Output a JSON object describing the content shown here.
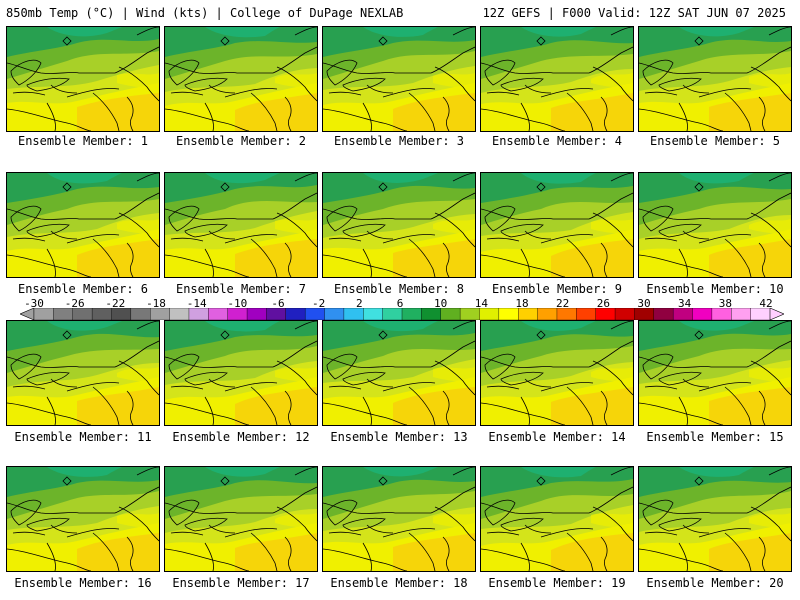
{
  "header": {
    "left": "850mb Temp (°C) | Wind (kts) | College of DuPage NEXLAB",
    "right": "12Z GEFS | F000 Valid: 12Z SAT JUN 07 2025"
  },
  "panels": [
    "Ensemble Member: 1",
    "Ensemble Member: 2",
    "Ensemble Member: 3",
    "Ensemble Member: 4",
    "Ensemble Member: 5",
    "Ensemble Member: 6",
    "Ensemble Member: 7",
    "Ensemble Member: 8",
    "Ensemble Member: 9",
    "Ensemble Member: 10",
    "Ensemble Member: 11",
    "Ensemble Member: 12",
    "Ensemble Member: 13",
    "Ensemble Member: 14",
    "Ensemble Member: 15",
    "Ensemble Member: 16",
    "Ensemble Member: 17",
    "Ensemble Member: 18",
    "Ensemble Member: 19",
    "Ensemble Member: 20"
  ],
  "colorbar": {
    "ticks": [
      "-30",
      "-26",
      "-22",
      "-18",
      "-14",
      "-10",
      "-6",
      "-2",
      "2",
      "6",
      "10",
      "14",
      "18",
      "22",
      "26",
      "30",
      "34",
      "38",
      "42"
    ],
    "colors": [
      "#a0a0a0",
      "#808080",
      "#707070",
      "#606060",
      "#505050",
      "#787878",
      "#a0a0a0",
      "#c0c0c0",
      "#d0a0e0",
      "#e060e0",
      "#d020d0",
      "#a000c0",
      "#6010a0",
      "#2020c0",
      "#2050f0",
      "#3090f0",
      "#30c0f0",
      "#40e0e0",
      "#30d0a0",
      "#20b060",
      "#109030",
      "#60b020",
      "#a0d020",
      "#e0f000",
      "#ffff00",
      "#ffd000",
      "#ffa000",
      "#ff7800",
      "#ff4000",
      "#ff0000",
      "#d00000",
      "#a00000",
      "#900040",
      "#c00080",
      "#f000c0",
      "#ff60e0",
      "#ffa0f0",
      "#ffd0ff"
    ]
  }
}
